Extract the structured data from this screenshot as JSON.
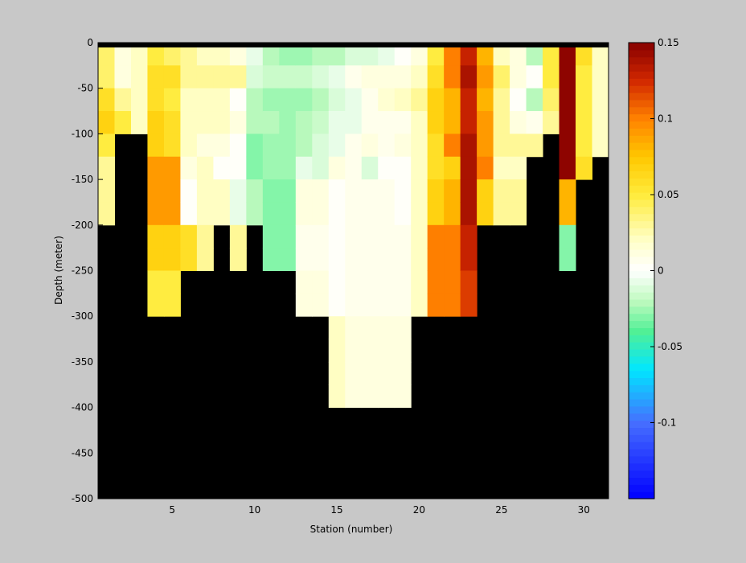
{
  "chart_data": {
    "type": "heatmap",
    "title": "",
    "xlabel": "Station (number)",
    "ylabel": "Depth (meter)",
    "xlim": [
      1,
      31
    ],
    "ylim": [
      -500,
      0
    ],
    "x_ticks": [
      5,
      10,
      15,
      20,
      25,
      30
    ],
    "x_tick_labels": [
      "5",
      "10",
      "15",
      "20",
      "25",
      "30"
    ],
    "y_ticks": [
      0,
      -50,
      -100,
      -150,
      -200,
      -250,
      -300,
      -350,
      -400,
      -450,
      -500
    ],
    "y_tick_labels": [
      "0",
      "-50",
      "-100",
      "-150",
      "-200",
      "-250",
      "-300",
      "-350",
      "-400",
      "-450",
      "-500"
    ],
    "colorbar": {
      "clim": [
        -0.15,
        0.15
      ],
      "ticks": [
        0.15,
        0.1,
        0.05,
        0,
        -0.05,
        -0.1
      ],
      "tick_labels": [
        "0.15",
        "0.1",
        "0.05",
        "0",
        "-0.05",
        "-0.1"
      ],
      "colormap": "jet-white-center",
      "levels": 64
    },
    "station_step": 1,
    "depth_levels": [
      -12.5,
      -37.5,
      -62.5,
      -87.5,
      -112.5,
      -137.5,
      -162.5,
      -187.5,
      -212.5,
      -237.5,
      -262.5,
      -287.5,
      -312.5,
      -337.5,
      -362.5,
      -387.5
    ],
    "depth_bin": 25,
    "stations": [
      {
        "station": 1,
        "values": [
          0.04,
          0.04,
          0.06,
          0.07,
          0.05,
          0.03,
          0.03,
          0.03
        ]
      },
      {
        "station": 2,
        "values": [
          0.01,
          0.01,
          0.03,
          0.05
        ]
      },
      {
        "station": 3,
        "values": [
          0.02,
          0.02,
          0.02,
          0.02
        ]
      },
      {
        "station": 4,
        "values": [
          0.05,
          0.06,
          0.06,
          0.07,
          0.07,
          0.09,
          0.09,
          0.09,
          0.07,
          0.07,
          0.05,
          0.05
        ]
      },
      {
        "station": 5,
        "values": [
          0.04,
          0.06,
          0.05,
          0.06,
          0.06,
          0.09,
          0.09,
          0.09,
          0.07,
          0.07,
          0.05,
          0.05
        ]
      },
      {
        "station": 6,
        "values": [
          0.03,
          0.03,
          0.02,
          0.02,
          0.02,
          0.01,
          0.0,
          0.0,
          0.06,
          0.06
        ]
      },
      {
        "station": 7,
        "values": [
          0.02,
          0.03,
          0.02,
          0.02,
          0.01,
          0.02,
          0.02,
          0.02,
          0.03,
          0.03
        ]
      },
      {
        "station": 8,
        "values": [
          0.02,
          0.03,
          0.02,
          0.02,
          0.01,
          0.0,
          0.02,
          0.02
        ]
      },
      {
        "station": 9,
        "values": [
          0.01,
          0.03,
          0.0,
          0.01,
          0.0,
          0.0,
          -0.005,
          -0.005,
          0.03,
          0.03
        ]
      },
      {
        "station": 10,
        "values": [
          -0.005,
          -0.01,
          -0.02,
          -0.02,
          -0.03,
          -0.03,
          -0.02,
          -0.02
        ]
      },
      {
        "station": 11,
        "values": [
          -0.02,
          -0.015,
          -0.025,
          -0.02,
          -0.025,
          -0.025,
          -0.03,
          -0.03,
          -0.03,
          -0.03
        ]
      },
      {
        "station": 12,
        "values": [
          -0.025,
          -0.015,
          -0.025,
          -0.025,
          -0.025,
          -0.025,
          -0.03,
          -0.03,
          -0.03,
          -0.03
        ]
      },
      {
        "station": 13,
        "values": [
          -0.025,
          -0.015,
          -0.025,
          -0.02,
          -0.02,
          -0.005,
          0.01,
          0.01,
          0.005,
          0.005,
          0.01,
          0.01
        ]
      },
      {
        "station": 14,
        "values": [
          -0.02,
          -0.01,
          -0.02,
          -0.015,
          -0.01,
          -0.01,
          0.01,
          0.01,
          0.005,
          0.005,
          0.01,
          0.01
        ]
      },
      {
        "station": 15,
        "values": [
          -0.02,
          -0.005,
          -0.01,
          -0.005,
          -0.005,
          0.01,
          0.0,
          0.0,
          0.0,
          0.0,
          0.0,
          0.0,
          0.02,
          0.02,
          0.02,
          0.02
        ]
      },
      {
        "station": 16,
        "values": [
          -0.01,
          0.005,
          -0.005,
          -0.005,
          0.005,
          0.005,
          0.005,
          0.005,
          0.005,
          0.005,
          0.005,
          0.005,
          0.01,
          0.01,
          0.01,
          0.01
        ]
      },
      {
        "station": 17,
        "values": [
          -0.01,
          0.01,
          0.005,
          0.005,
          0.01,
          -0.01,
          0.005,
          0.005,
          0.005,
          0.005,
          0.005,
          0.005,
          0.01,
          0.01,
          0.01,
          0.01
        ]
      },
      {
        "station": 18,
        "values": [
          -0.005,
          0.01,
          0.015,
          0.005,
          0.005,
          0.0,
          0.005,
          0.005,
          0.005,
          0.005,
          0.005,
          0.005,
          0.01,
          0.01,
          0.01,
          0.01
        ]
      },
      {
        "station": 19,
        "values": [
          0.0,
          0.01,
          0.02,
          0.005,
          0.01,
          0.0,
          0.0,
          0.0,
          0.005,
          0.005,
          0.005,
          0.005,
          0.01,
          0.01,
          0.01,
          0.01
        ]
      },
      {
        "station": 20,
        "values": [
          0.01,
          0.02,
          0.03,
          0.02,
          0.02,
          0.02,
          0.02,
          0.02,
          0.02,
          0.02,
          0.02,
          0.02
        ]
      },
      {
        "station": 21,
        "values": [
          0.05,
          0.06,
          0.07,
          0.07,
          0.06,
          0.06,
          0.07,
          0.07,
          0.1,
          0.1,
          0.1,
          0.1
        ]
      },
      {
        "station": 22,
        "values": [
          0.1,
          0.1,
          0.08,
          0.08,
          0.1,
          0.07,
          0.08,
          0.08,
          0.1,
          0.1,
          0.1,
          0.1
        ]
      },
      {
        "station": 23,
        "values": [
          0.13,
          0.14,
          0.13,
          0.13,
          0.14,
          0.14,
          0.14,
          0.14,
          0.13,
          0.13,
          0.12,
          0.12
        ]
      },
      {
        "station": 24,
        "values": [
          0.08,
          0.09,
          0.08,
          0.09,
          0.09,
          0.1,
          0.07,
          0.07
        ]
      },
      {
        "station": 25,
        "values": [
          0.02,
          0.04,
          0.03,
          0.03,
          0.03,
          0.02,
          0.03,
          0.03
        ]
      },
      {
        "station": 26,
        "values": [
          0.01,
          0.01,
          0.0,
          0.01,
          0.03,
          0.02,
          0.03,
          0.03
        ]
      },
      {
        "station": 27,
        "values": [
          -0.02,
          0.0,
          -0.02,
          0.005,
          0.03
        ]
      },
      {
        "station": 28,
        "values": [
          0.05,
          0.05,
          0.04,
          0.03
        ]
      },
      {
        "station": 29,
        "values": [
          0.15,
          0.15,
          0.15,
          0.15,
          0.15,
          0.15,
          0.08,
          0.08,
          -0.03,
          -0.03
        ]
      },
      {
        "station": 30,
        "values": [
          0.06,
          0.05,
          0.05,
          0.05,
          0.05,
          0.06
        ]
      },
      {
        "station": 31,
        "values": [
          0.02,
          0.02,
          0.02,
          0.02,
          0.02
        ]
      }
    ]
  }
}
